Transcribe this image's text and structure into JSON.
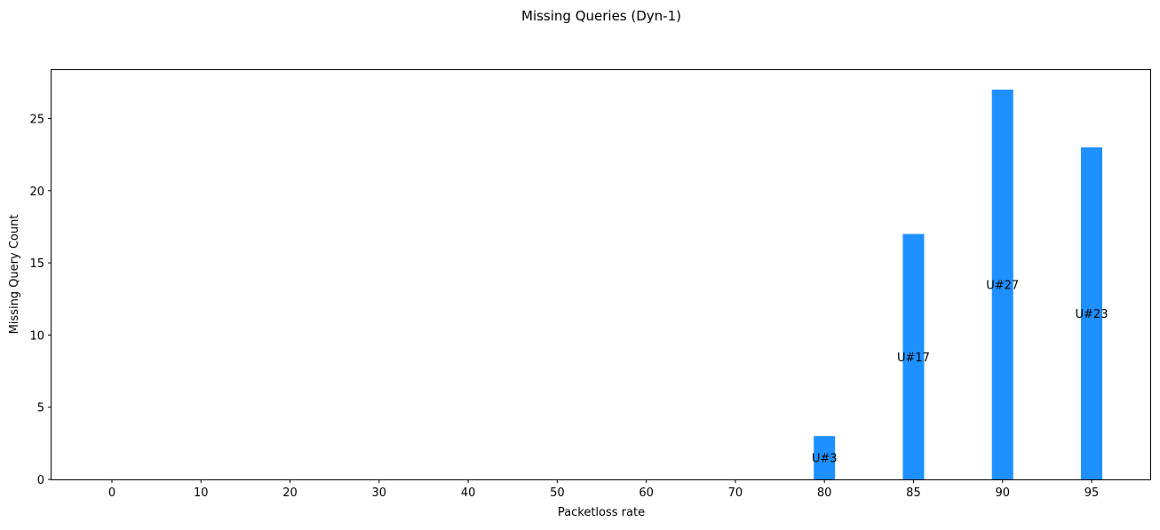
{
  "chart_data": {
    "type": "bar",
    "title": "Missing Queries (Dyn-1)",
    "xlabel": "Packetloss rate",
    "ylabel": "Missing Query Count",
    "categories": [
      "0",
      "10",
      "20",
      "30",
      "40",
      "50",
      "60",
      "70",
      "80",
      "85",
      "90",
      "95"
    ],
    "values": [
      0,
      0,
      0,
      0,
      0,
      0,
      0,
      0,
      3,
      17,
      27,
      23
    ],
    "bar_labels": [
      "",
      "",
      "",
      "",
      "",
      "",
      "",
      "",
      "U#3",
      "U#17",
      "U#27",
      "U#23"
    ],
    "ylim": [
      0,
      28.35
    ],
    "yticks": [
      0,
      5,
      10,
      15,
      20,
      25
    ],
    "bar_color": "#1e90ff",
    "grid": false,
    "legend": "none"
  }
}
